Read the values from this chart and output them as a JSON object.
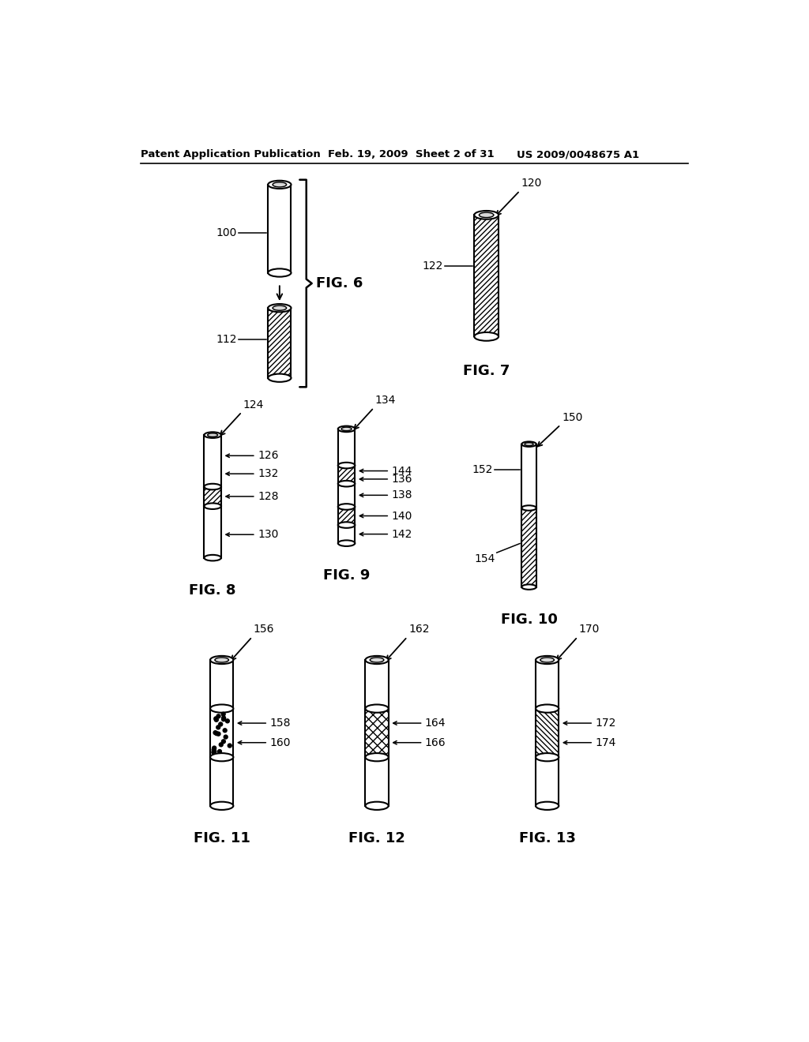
{
  "header_left": "Patent Application Publication",
  "header_mid": "Feb. 19, 2009  Sheet 2 of 31",
  "header_right": "US 2009/0048675 A1",
  "background": "#ffffff",
  "line_color": "#000000",
  "fig6_label": "FIG. 6",
  "fig7_label": "FIG. 7",
  "fig8_label": "FIG. 8",
  "fig9_label": "FIG. 9",
  "fig10_label": "FIG. 10",
  "fig11_label": "FIG. 11",
  "fig12_label": "FIG. 12",
  "fig13_label": "FIG. 13"
}
